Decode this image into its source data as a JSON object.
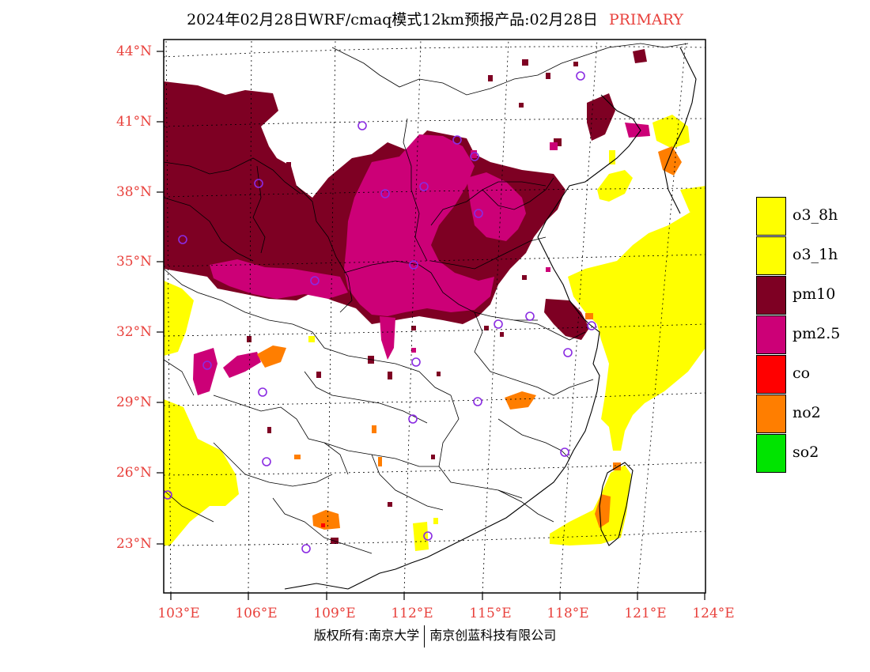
{
  "title": {
    "text": "2024年02月28日WRF/cmaq模式12km预报产品:02月28日",
    "tag": "PRIMARY"
  },
  "lat_labels": [
    "44°N",
    "41°N",
    "38°N",
    "35°N",
    "32°N",
    "29°N",
    "26°N",
    "23°N"
  ],
  "lon_labels": [
    "103°E",
    "106°E",
    "109°E",
    "112°E",
    "115°E",
    "118°E",
    "121°E",
    "124°E"
  ],
  "legend": [
    {
      "label": "o3_8h",
      "color": "#ffff00"
    },
    {
      "label": "o3_1h",
      "color": "#ffff00"
    },
    {
      "label": "pm10",
      "color": "#7e0023"
    },
    {
      "label": "pm2.5",
      "color": "#cc0077"
    },
    {
      "label": "co",
      "color": "#ff0000"
    },
    {
      "label": "no2",
      "color": "#ff7e00"
    },
    {
      "label": "so2",
      "color": "#00e400"
    }
  ],
  "credit": {
    "left": "版权所有:南京大学",
    "right": "南京创蓝科技有限公司"
  },
  "colors": {
    "pm10": "#7e0023",
    "pm25": "#cc0077",
    "o3": "#ffff00",
    "no2": "#ff7e00",
    "station": "#8a2be2",
    "label": "#e8413c"
  }
}
